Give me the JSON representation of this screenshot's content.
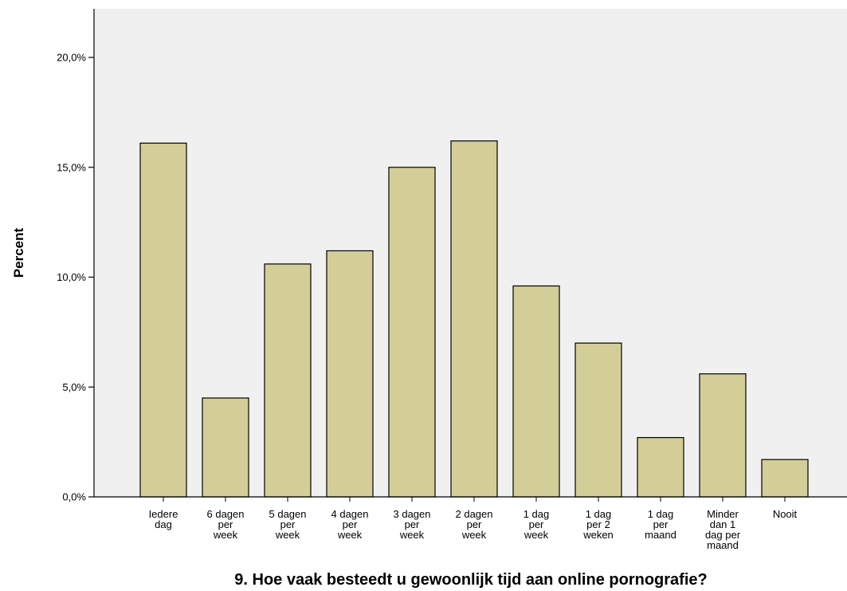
{
  "chart_data": {
    "type": "bar",
    "xlabel": "9. Hoe vaak besteedt u gewoonlijk tijd aan online pornografie?",
    "ylabel": "Percent",
    "ylim": [
      0,
      22
    ],
    "yticks": [
      {
        "value": 0,
        "label": "0,0%"
      },
      {
        "value": 5,
        "label": "5,0%"
      },
      {
        "value": 10,
        "label": "10,0%"
      },
      {
        "value": 15,
        "label": "15,0%"
      },
      {
        "value": 20,
        "label": "20,0%"
      }
    ],
    "categories": [
      [
        "Iedere",
        "dag"
      ],
      [
        "6 dagen",
        "per",
        "week"
      ],
      [
        "5 dagen",
        "per",
        "week"
      ],
      [
        "4 dagen",
        "per",
        "week"
      ],
      [
        "3 dagen",
        "per",
        "week"
      ],
      [
        "2 dagen",
        "per",
        "week"
      ],
      [
        "1 dag",
        "per",
        "week"
      ],
      [
        "1 dag",
        "per 2",
        "weken"
      ],
      [
        "1 dag",
        "per",
        "maand"
      ],
      [
        "Minder",
        "dan 1",
        "dag per",
        "maand"
      ],
      [
        "Nooit"
      ]
    ],
    "values": [
      16.1,
      4.5,
      10.6,
      11.2,
      15.0,
      16.2,
      9.6,
      7.0,
      2.7,
      5.6,
      1.7
    ],
    "colors": {
      "plot_background": "#f0f0f0",
      "bar_fill": "#d3ce97",
      "bar_stroke": "#000000"
    },
    "grid": false,
    "legend": "none"
  }
}
